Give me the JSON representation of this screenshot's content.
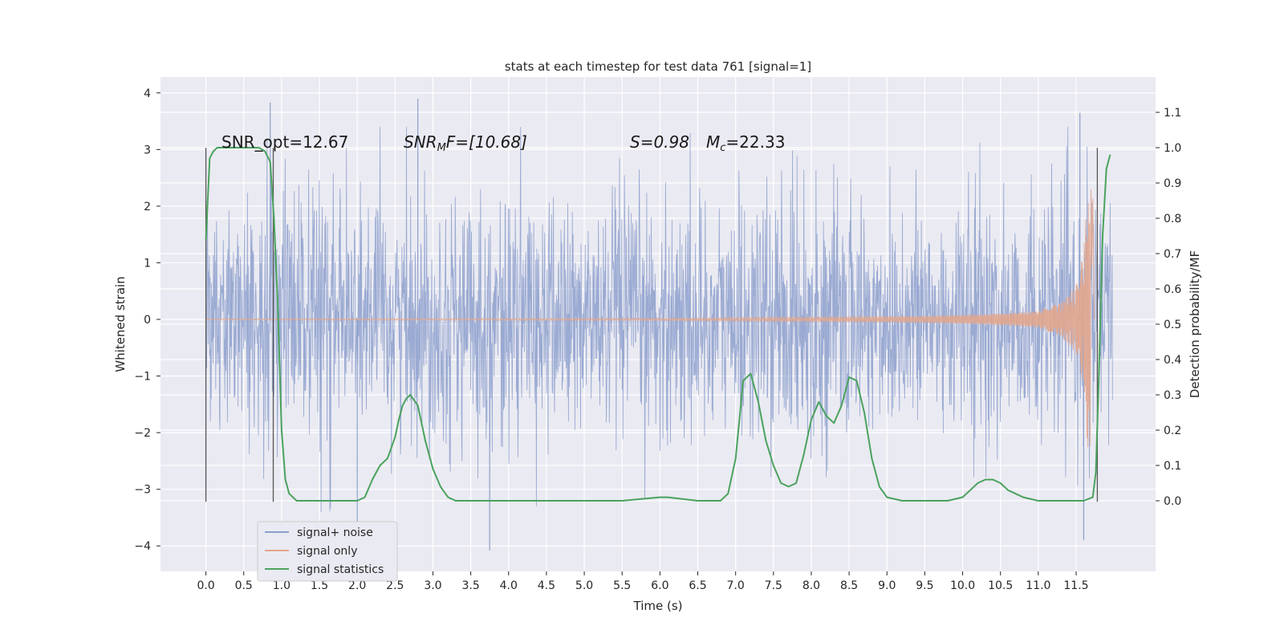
{
  "chart_data": {
    "type": "line",
    "title": "stats at each timestep for test data 761 [signal=1]",
    "xlabel": "Time (s)",
    "ylabel_left": "Whitened strain",
    "ylabel_right": "Detection probability/MF",
    "xlim": [
      -0.6,
      12.55
    ],
    "ylim_left": [
      -4.45,
      4.28
    ],
    "ylim_right": [
      -0.2,
      1.2
    ],
    "x_ticks": [
      "0.0",
      "0.5",
      "1.0",
      "1.5",
      "2.0",
      "2.5",
      "3.0",
      "3.5",
      "4.0",
      "4.5",
      "5.0",
      "5.5",
      "6.0",
      "6.5",
      "7.0",
      "7.5",
      "8.0",
      "8.5",
      "9.0",
      "9.5",
      "10.0",
      "10.5",
      "11.0",
      "11.5"
    ],
    "y_ticks_left": [
      "4",
      "3",
      "2",
      "1",
      "0",
      "−1",
      "−2",
      "−3",
      "−4"
    ],
    "y_ticks_right": [
      "1.1",
      "1.0",
      "0.9",
      "0.8",
      "0.7",
      "0.6",
      "0.5",
      "0.4",
      "0.3",
      "0.2",
      "0.1",
      "0.0"
    ],
    "grid": true,
    "legend_placement": "lower-left",
    "annotations": {
      "snr_opt": "SNR_opt=12.67",
      "snr_mf_main": "SNR",
      "snr_mf_sub": "M",
      "snr_mf_rest": "F=[10.68]",
      "s_value": "S=0.98",
      "mc_main": "M",
      "mc_sub": "c",
      "mc_rest": "=22.33"
    },
    "vertical_lines_x": [
      0.0,
      0.89,
      11.78
    ],
    "series": [
      {
        "name": "signal+ noise",
        "color": "#8c9fcc",
        "axis": "left",
        "description_points": {
          "x_range": [
            0.0,
            11.98
          ],
          "notable_extremes": [
            [
              0.85,
              3.83
            ],
            [
              2.8,
              3.9
            ],
            [
              3.75,
              -4.08
            ],
            [
              2.0,
              -3.6
            ],
            [
              11.55,
              3.65
            ],
            [
              11.6,
              -3.9
            ]
          ]
        }
      },
      {
        "name": "signal only",
        "color": "#e1a68e",
        "axis": "left",
        "envelope": {
          "x": [
            0.0,
            6.0,
            8.0,
            9.5,
            10.5,
            11.0,
            11.3,
            11.5,
            11.6,
            11.65,
            11.7
          ],
          "amplitude": [
            0.01,
            0.02,
            0.04,
            0.06,
            0.1,
            0.15,
            0.3,
            0.6,
            1.2,
            2.3,
            2.3
          ]
        }
      },
      {
        "name": "signal statistics",
        "color": "#4aa25d",
        "axis": "right",
        "x": [
          0.0,
          0.05,
          0.1,
          0.15,
          0.25,
          0.4,
          0.5,
          0.6,
          0.7,
          0.78,
          0.85,
          0.9,
          0.95,
          1.0,
          1.05,
          1.1,
          1.2,
          1.3,
          1.5,
          1.7,
          2.0,
          2.1,
          2.2,
          2.3,
          2.4,
          2.5,
          2.55,
          2.6,
          2.65,
          2.7,
          2.8,
          2.9,
          3.0,
          3.1,
          3.2,
          3.3,
          3.5,
          3.8,
          4.5,
          5.0,
          5.5,
          6.0,
          6.1,
          6.5,
          6.8,
          6.9,
          7.0,
          7.1,
          7.2,
          7.3,
          7.4,
          7.5,
          7.6,
          7.7,
          7.8,
          7.9,
          8.0,
          8.1,
          8.2,
          8.3,
          8.4,
          8.5,
          8.6,
          8.7,
          8.8,
          8.9,
          9.0,
          9.2,
          9.5,
          9.8,
          10.0,
          10.1,
          10.2,
          10.3,
          10.4,
          10.5,
          10.6,
          10.8,
          11.0,
          11.3,
          11.6,
          11.72,
          11.76,
          11.8,
          11.85,
          11.9,
          11.95
        ],
        "y": [
          0.74,
          0.97,
          0.99,
          1.0,
          1.0,
          1.0,
          1.0,
          1.0,
          1.0,
          0.99,
          0.96,
          0.8,
          0.55,
          0.2,
          0.06,
          0.02,
          0.0,
          0.0,
          0.0,
          0.0,
          0.0,
          0.01,
          0.06,
          0.1,
          0.12,
          0.18,
          0.23,
          0.27,
          0.29,
          0.3,
          0.27,
          0.17,
          0.09,
          0.04,
          0.01,
          0.0,
          0.0,
          0.0,
          0.0,
          0.0,
          0.0,
          0.01,
          0.01,
          0.0,
          0.0,
          0.02,
          0.12,
          0.34,
          0.36,
          0.28,
          0.17,
          0.1,
          0.05,
          0.04,
          0.05,
          0.13,
          0.23,
          0.28,
          0.24,
          0.22,
          0.27,
          0.35,
          0.34,
          0.25,
          0.12,
          0.04,
          0.01,
          0.0,
          0.0,
          0.0,
          0.01,
          0.03,
          0.05,
          0.06,
          0.06,
          0.05,
          0.03,
          0.01,
          0.0,
          0.0,
          0.0,
          0.01,
          0.08,
          0.35,
          0.75,
          0.94,
          0.98
        ]
      }
    ]
  }
}
